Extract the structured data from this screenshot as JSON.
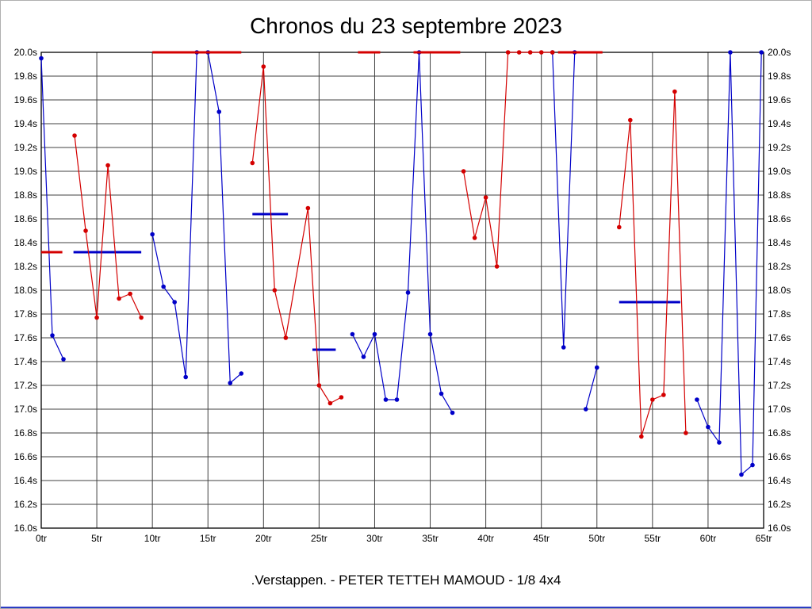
{
  "window": {
    "border_accent_color": "#2b3cc4"
  },
  "chart_data": {
    "type": "line",
    "title": "Chronos du 23 septembre 2023",
    "caption": ".Verstappen. - PETER TETTEH MAMOUD - 1/8 4x4",
    "x_unit": "tr",
    "y_unit": "s",
    "x_range": [
      0,
      65
    ],
    "x_tick_step": 5,
    "y_range": [
      16.0,
      20.0
    ],
    "y_tick_step": 0.2,
    "grid": true,
    "axis_color": "#000000",
    "grid_color": "#404040",
    "series": [
      {
        "name": ".Verstappen.",
        "color": "#0000c8",
        "segments": [
          [
            [
              0,
              19.95
            ],
            [
              1,
              17.62
            ],
            [
              2,
              17.42
            ]
          ],
          [
            [
              10,
              18.47
            ],
            [
              11,
              18.03
            ],
            [
              12,
              17.9
            ],
            [
              13,
              17.27
            ],
            [
              14,
              20
            ],
            [
              15,
              20
            ],
            [
              16,
              19.5
            ],
            [
              17,
              17.22
            ],
            [
              18,
              17.3
            ]
          ],
          [
            [
              28,
              17.63
            ],
            [
              29,
              17.44
            ],
            [
              30,
              17.63
            ],
            [
              31,
              17.08
            ],
            [
              32,
              17.08
            ],
            [
              33,
              17.98
            ],
            [
              34,
              20
            ],
            [
              35,
              17.63
            ],
            [
              36,
              17.13
            ],
            [
              37,
              16.97
            ]
          ],
          [
            [
              46,
              20
            ],
            [
              47,
              17.52
            ],
            [
              48,
              20
            ]
          ],
          [
            [
              49,
              17.0
            ],
            [
              50,
              17.35
            ]
          ],
          [
            [
              59,
              17.08
            ],
            [
              60,
              16.85
            ],
            [
              61,
              16.72
            ],
            [
              62,
              20
            ],
            [
              63,
              16.45
            ],
            [
              64,
              16.53
            ],
            [
              64.8,
              20
            ]
          ]
        ],
        "flat_segments": [
          {
            "x1": 2.9,
            "x2": 9.0,
            "y": 18.32
          },
          {
            "x1": 19.0,
            "x2": 22.2,
            "y": 18.64
          },
          {
            "x1": 24.4,
            "x2": 26.5,
            "y": 17.5
          },
          {
            "x1": 52.0,
            "x2": 57.5,
            "y": 17.9
          }
        ]
      },
      {
        "name": "PETER TETTEH MAMOUD",
        "color": "#d40000",
        "segments": [
          [
            [
              3,
              19.3
            ],
            [
              4,
              18.5
            ],
            [
              5,
              17.77
            ],
            [
              6,
              19.05
            ],
            [
              7,
              17.93
            ],
            [
              8,
              17.97
            ],
            [
              9,
              17.77
            ]
          ],
          [
            [
              19,
              19.07
            ],
            [
              20,
              19.88
            ],
            [
              21,
              18.0
            ],
            [
              22,
              17.6
            ],
            [
              24,
              18.69
            ],
            [
              25,
              17.2
            ],
            [
              26,
              17.05
            ],
            [
              27,
              17.1
            ]
          ],
          [
            [
              38,
              19.0
            ],
            [
              39,
              18.44
            ],
            [
              40,
              18.78
            ],
            [
              41,
              18.2
            ],
            [
              42,
              20
            ],
            [
              43,
              20
            ],
            [
              44,
              20
            ],
            [
              45,
              20
            ],
            [
              46,
              20
            ]
          ],
          [
            [
              52,
              18.53
            ],
            [
              53,
              19.43
            ],
            [
              54,
              16.77
            ],
            [
              55,
              17.08
            ],
            [
              56,
              17.12
            ],
            [
              57,
              19.67
            ],
            [
              58,
              16.8
            ]
          ]
        ],
        "flat_segments": [
          {
            "x1": 0.0,
            "x2": 1.9,
            "y": 18.32
          },
          {
            "x1": 10.0,
            "x2": 18.0,
            "y": 20.0
          },
          {
            "x1": 28.5,
            "x2": 30.5,
            "y": 20.0
          },
          {
            "x1": 33.5,
            "x2": 37.7,
            "y": 20.0
          },
          {
            "x1": 46.5,
            "x2": 50.5,
            "y": 20.0
          }
        ]
      }
    ]
  }
}
